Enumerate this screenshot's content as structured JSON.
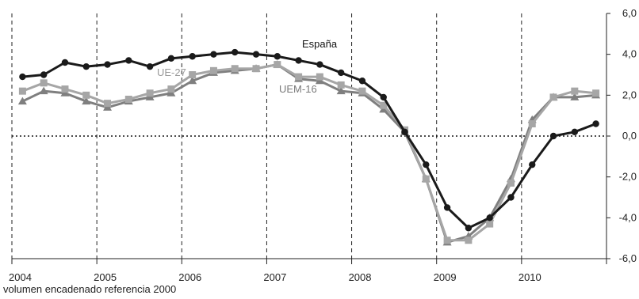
{
  "chart_data": {
    "type": "line",
    "footnote": "volumen encadenado referencia 2000",
    "x_labels": [
      "2004",
      "2005",
      "2006",
      "2007",
      "2008",
      "2009",
      "2010"
    ],
    "ylim": [
      -6,
      6
    ],
    "y_ticks": [
      "6,0",
      "4,0",
      "2,0",
      "0,0",
      "-2,0",
      "-4,0",
      "-6,0"
    ],
    "y_axis_side": "right",
    "grid": "vertical dashed at year boundaries",
    "zero_line": "dotted",
    "quarters": [
      "2004 T1",
      "2004 T2",
      "2004 T3",
      "2004 T4",
      "2005 T1",
      "2005 T2",
      "2005 T3",
      "2005 T4",
      "2006 T1",
      "2006 T2",
      "2006 T3",
      "2006 T4",
      "2007 T1",
      "2007 T2",
      "2007 T3",
      "2007 T4",
      "2008 T1",
      "2008 T2",
      "2008 T3",
      "2008 T4",
      "2009 T1",
      "2009 T2",
      "2009 T3",
      "2009 T4",
      "2010 T1",
      "2010 T2",
      "2010 T3",
      "2010 T4"
    ],
    "series": [
      {
        "name": "España",
        "color": "#1a1a1a",
        "marker": "circle",
        "values": [
          2.9,
          3.0,
          3.6,
          3.4,
          3.5,
          3.7,
          3.4,
          3.8,
          3.9,
          4.0,
          4.1,
          4.0,
          3.9,
          3.7,
          3.5,
          3.1,
          2.7,
          1.9,
          0.2,
          -1.4,
          -3.5,
          -4.5,
          -4.0,
          -3.0,
          -1.4,
          0.0,
          0.2,
          0.6
        ]
      },
      {
        "name": "UE-27",
        "color": "#a6a6a6",
        "marker": "square",
        "values": [
          2.2,
          2.6,
          2.3,
          2.0,
          1.6,
          1.8,
          2.1,
          2.3,
          3.0,
          3.2,
          3.3,
          3.3,
          3.5,
          2.9,
          2.9,
          2.5,
          2.2,
          1.5,
          0.3,
          -2.1,
          -5.1,
          -5.1,
          -4.3,
          -2.3,
          0.6,
          1.9,
          2.2,
          2.1
        ]
      },
      {
        "name": "UEM-16",
        "color": "#7f7f7f",
        "marker": "triangle",
        "values": [
          1.7,
          2.2,
          2.1,
          1.7,
          1.4,
          1.7,
          1.9,
          2.1,
          2.7,
          3.1,
          3.2,
          3.3,
          3.5,
          2.8,
          2.7,
          2.2,
          2.1,
          1.3,
          0.2,
          -2.1,
          -5.2,
          -4.9,
          -4.0,
          -2.1,
          0.8,
          1.9,
          1.9,
          2.0
        ]
      }
    ]
  }
}
